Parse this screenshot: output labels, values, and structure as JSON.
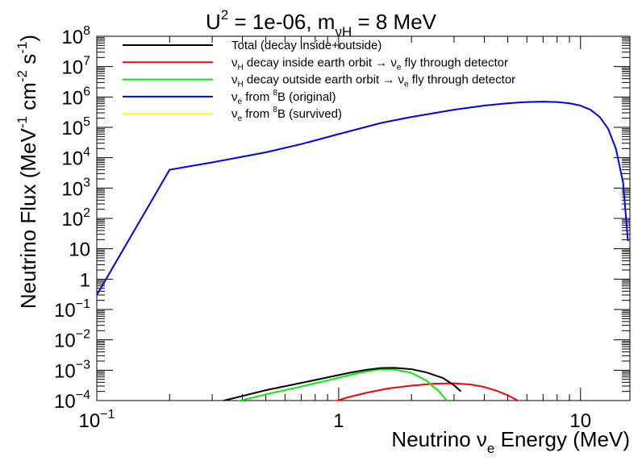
{
  "chart_data": {
    "type": "line",
    "title": {
      "base1": "U",
      "sup1": "2",
      "mid": " = 1e-06, m",
      "sub": "νH",
      "end": " = 8 MeV"
    },
    "xlabel": {
      "pre": "Neutrino ν",
      "sub": "e",
      "post": " Energy (MeV)"
    },
    "ylabel": {
      "p1": "Neutrino Flux (MeV",
      "s1": "-1",
      "p2": " cm",
      "s2": "-2",
      "p3": " s",
      "s3": "-1",
      "p4": ")"
    },
    "x_scale": "log",
    "y_scale": "log",
    "xlim": [
      0.1,
      16
    ],
    "ylim": [
      0.0001,
      100000000
    ],
    "x_ticks": [
      {
        "value": 0.1,
        "base": "10",
        "exp": "−1"
      },
      {
        "value": 1,
        "base": "1",
        "exp": ""
      },
      {
        "value": 10,
        "base": "10",
        "exp": ""
      }
    ],
    "y_ticks": [
      {
        "value": 0.0001,
        "base": "10",
        "exp": "−4"
      },
      {
        "value": 0.001,
        "base": "10",
        "exp": "−3"
      },
      {
        "value": 0.01,
        "base": "10",
        "exp": "−2"
      },
      {
        "value": 0.1,
        "base": "10",
        "exp": "−1"
      },
      {
        "value": 1,
        "base": "1",
        "exp": ""
      },
      {
        "value": 10,
        "base": "10",
        "exp": ""
      },
      {
        "value": 100,
        "base": "10",
        "exp": "2"
      },
      {
        "value": 1000,
        "base": "10",
        "exp": "3"
      },
      {
        "value": 10000,
        "base": "10",
        "exp": "4"
      },
      {
        "value": 100000,
        "base": "10",
        "exp": "5"
      },
      {
        "value": 1000000,
        "base": "10",
        "exp": "6"
      },
      {
        "value": 10000000,
        "base": "10",
        "exp": "7"
      },
      {
        "value": 100000000,
        "base": "10",
        "exp": "8"
      }
    ],
    "legend_position": "top-left",
    "grid": false,
    "series": [
      {
        "name": "Total (decay inside+outside)",
        "legend_parts": [
          {
            "t": "Total (decay inside+outside)"
          }
        ],
        "color": "#000000",
        "x": [
          0.3,
          0.5,
          0.7,
          0.9,
          1.1,
          1.3,
          1.5,
          1.7,
          2.0,
          2.3,
          2.7,
          3.0,
          3.2
        ],
        "y": [
          8e-05,
          0.00022,
          0.00038,
          0.00058,
          0.00081,
          0.00103,
          0.00118,
          0.0012,
          0.00108,
          0.00085,
          0.00055,
          0.00032,
          0.0002
        ]
      },
      {
        "name": "ν_H decay inside earth orbit → ν_e fly through detector",
        "legend_parts": [
          {
            "t": "ν"
          },
          {
            "t": "H",
            "sub": true
          },
          {
            "t": " decay inside earth orbit → ν"
          },
          {
            "t": "e",
            "sub": true
          },
          {
            "t": " fly through detector"
          }
        ],
        "color": "#ff0000",
        "x": [
          0.9,
          1.1,
          1.3,
          1.6,
          2.0,
          2.5,
          3.0,
          3.5,
          4.0,
          4.5,
          5.0,
          5.5,
          6.0
        ],
        "y": [
          8e-05,
          0.00013,
          0.00018,
          0.00025,
          0.00031,
          0.00036,
          0.00037,
          0.00034,
          0.00028,
          0.00021,
          0.00015,
          0.0001,
          7e-05
        ]
      },
      {
        "name": "ν_H decay outside earth orbit → ν_e fly through detector",
        "legend_parts": [
          {
            "t": "ν"
          },
          {
            "t": "H",
            "sub": true
          },
          {
            "t": " decay outside earth orbit → ν"
          },
          {
            "t": "e",
            "sub": true
          },
          {
            "t": " fly through detector"
          }
        ],
        "color": "#00ee00",
        "x": [
          0.35,
          0.5,
          0.7,
          0.9,
          1.1,
          1.3,
          1.5,
          1.7,
          2.0,
          2.3,
          2.6,
          2.8,
          3.0
        ],
        "y": [
          8e-05,
          0.00016,
          0.00029,
          0.00046,
          0.00068,
          0.00091,
          0.00108,
          0.00106,
          0.00082,
          0.00046,
          0.0002,
          0.0001,
          5e-05
        ]
      },
      {
        "name": "ν_e from 8B (original)",
        "legend_parts": [
          {
            "t": "ν"
          },
          {
            "t": "e",
            "sub": true
          },
          {
            "t": " from "
          },
          {
            "t": "8",
            "sup": true
          },
          {
            "t": "B (original)"
          }
        ],
        "color": "#0000ff",
        "x": [
          0.1,
          0.2,
          0.3,
          0.5,
          0.7,
          1.0,
          1.5,
          2.0,
          3.0,
          4.0,
          5.0,
          6.0,
          7.0,
          8.0,
          9.0,
          10.0,
          11.0,
          12.0,
          13.0,
          14.0,
          15.0,
          15.7
        ],
        "y": [
          0.3,
          4000,
          7000,
          15000,
          28000,
          60000,
          140000,
          220000,
          380000,
          520000,
          620000,
          680000,
          700000,
          680000,
          620000,
          520000,
          380000,
          220000,
          90000,
          20000,
          1500,
          18
        ]
      },
      {
        "name": "ν_e from 8B (survived)",
        "legend_parts": [
          {
            "t": "ν"
          },
          {
            "t": "e",
            "sub": true
          },
          {
            "t": " from "
          },
          {
            "t": "8",
            "sup": true
          },
          {
            "t": "B (survived)"
          }
        ],
        "color": "#ffff00",
        "x": [
          0.1,
          0.2,
          0.3,
          0.5,
          0.7,
          1.0,
          1.5,
          2.0,
          3.0,
          4.0,
          5.0,
          6.0,
          7.0,
          8.0,
          9.0,
          10.0,
          11.0,
          12.0,
          13.0,
          14.0,
          15.0,
          15.7
        ],
        "y": [
          0.3,
          4000,
          7000,
          15000,
          28000,
          60000,
          140000,
          220000,
          380000,
          520000,
          620000,
          680000,
          700000,
          680000,
          620000,
          520000,
          380000,
          220000,
          90000,
          20000,
          1500,
          18
        ]
      }
    ]
  }
}
